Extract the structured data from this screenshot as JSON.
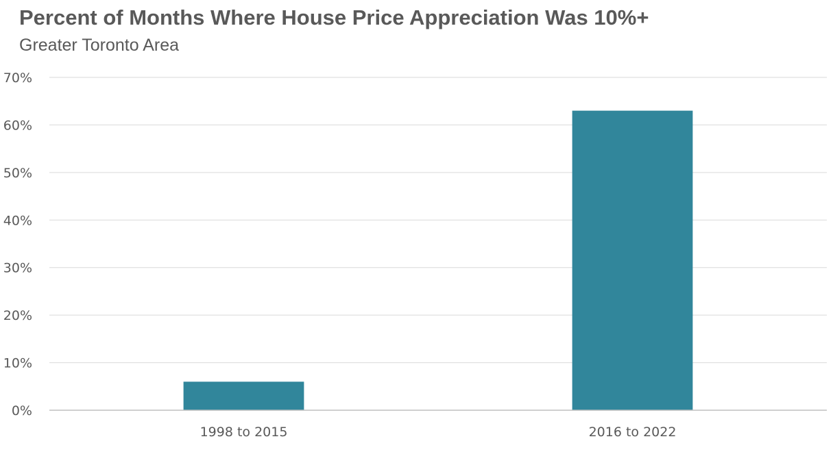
{
  "chart_data": {
    "type": "bar",
    "title": "Percent of Months Where House Price Appreciation Was 10%+",
    "subtitle": "Greater Toronto Area",
    "categories": [
      "1998 to 2015",
      "2016 to 2022"
    ],
    "values": [
      6,
      63
    ],
    "ylim": [
      0,
      70
    ],
    "yticks": [
      0,
      10,
      20,
      30,
      40,
      50,
      60,
      70
    ],
    "ytick_labels": [
      "0%",
      "10%",
      "20%",
      "30%",
      "40%",
      "50%",
      "60%",
      "70%"
    ],
    "xlabel": "",
    "ylabel": "",
    "grid": true,
    "bar_color": "#31869B",
    "grid_color": "#D9D9D9",
    "axis_color": "#BFBFBF"
  }
}
